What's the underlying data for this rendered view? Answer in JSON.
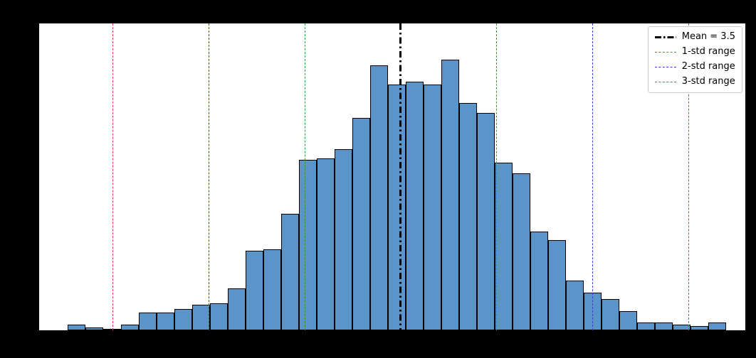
{
  "figure": {
    "background_color": "#000000",
    "plot_background_color": "#ffffff"
  },
  "chart_data": {
    "type": "bar",
    "subtype": "histogram",
    "title": "",
    "xlabel": "",
    "ylabel": "",
    "grid": false,
    "bar_color": "#5b94c8",
    "bar_edge_color": "#000000",
    "xlim": [
      0,
      6.84
    ],
    "ylim": [
      0,
      227
    ],
    "bin_start": 0.276,
    "bin_width": 0.1724,
    "counts": [
      4,
      2,
      1,
      4,
      13,
      13,
      16,
      19,
      20,
      31,
      59,
      60,
      86,
      126,
      127,
      134,
      157,
      196,
      182,
      184,
      182,
      200,
      168,
      161,
      124,
      116,
      73,
      67,
      37,
      28,
      23,
      14,
      6,
      6,
      4,
      3,
      6
    ],
    "mean": 3.5,
    "std": 0.93,
    "mean_line": {
      "x": 3.5,
      "label": "Mean = 3.5",
      "color": "#000000",
      "style": "dashdot"
    },
    "std_lines": [
      {
        "name": "1-std range",
        "color": "#2f9e2f",
        "style": "dashed",
        "x_values": [
          2.57,
          4.43
        ]
      },
      {
        "name": "2-std range",
        "color": "#3c3cd9",
        "style": "dashed",
        "x_values": [
          1.64,
          5.36
        ]
      },
      {
        "name": "3-std range",
        "color": "#e03a3a",
        "style": "dashed",
        "x_values": [
          0.71,
          6.29
        ]
      }
    ],
    "legend_position": "upper right"
  },
  "legend": {
    "entries": [
      {
        "label": "Mean = 3.5",
        "color": "#000000",
        "style": "dashdot"
      },
      {
        "label": "1-std range",
        "color": "#2f9e2f",
        "style": "dashed"
      },
      {
        "label": "2-std range",
        "color": "#3c3cd9",
        "style": "dashed"
      },
      {
        "label": "3-std range",
        "color": "#e03a3a",
        "style": "dashed"
      }
    ]
  }
}
